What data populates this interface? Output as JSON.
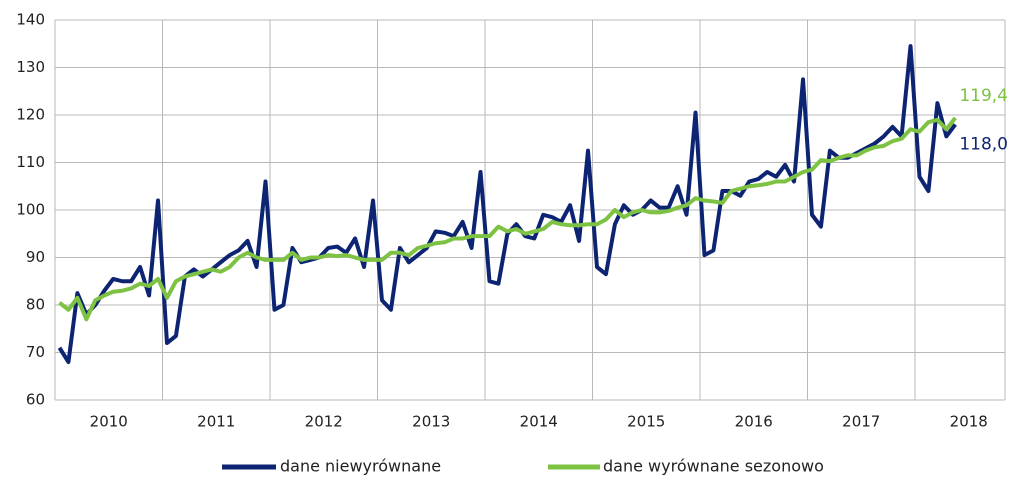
{
  "chart_data": {
    "type": "line",
    "categories": [
      "2010",
      null,
      null,
      null,
      null,
      null,
      null,
      null,
      null,
      null,
      null,
      null,
      "2011",
      null,
      null,
      null,
      null,
      null,
      null,
      null,
      null,
      null,
      null,
      null,
      "2012",
      null,
      null,
      null,
      null,
      null,
      null,
      null,
      null,
      null,
      null,
      null,
      "2013",
      null,
      null,
      null,
      null,
      null,
      null,
      null,
      null,
      null,
      null,
      null,
      "2014",
      null,
      null,
      null,
      null,
      null,
      null,
      null,
      null,
      null,
      null,
      null,
      "2015",
      null,
      null,
      null,
      null,
      null,
      null,
      null,
      null,
      null,
      null,
      null,
      "2016",
      null,
      null,
      null,
      null,
      null,
      null,
      null,
      null,
      null,
      null,
      null,
      "2017",
      null,
      null,
      null,
      null,
      null,
      null,
      null,
      null,
      null,
      null,
      null,
      "2018",
      null,
      null,
      null,
      null
    ],
    "series": [
      {
        "name": "dane niewyrównane",
        "color": "#0d2473",
        "values": [
          71,
          68,
          82.5,
          78,
          80,
          83,
          85.5,
          85,
          85,
          88,
          82,
          102,
          72,
          73.5,
          86,
          87.5,
          86,
          87.5,
          89,
          90.5,
          91.5,
          93.5,
          88,
          106,
          79,
          80,
          92,
          89,
          89.5,
          90,
          92,
          92.3,
          91,
          94,
          88,
          102,
          81,
          79,
          92,
          89,
          90.5,
          92,
          95.5,
          95.2,
          94.5,
          97.5,
          92,
          108,
          85,
          84.5,
          95,
          97,
          94.5,
          94,
          99,
          98.5,
          97.5,
          101,
          93.5,
          112.5,
          88,
          86.5,
          97,
          101,
          99,
          100,
          102,
          100.5,
          100.5,
          105,
          99,
          120.5,
          90.5,
          91.5,
          104,
          104,
          103,
          106,
          106.5,
          108,
          107,
          109.5,
          106,
          127.5,
          99,
          96.5,
          112.5,
          111,
          111,
          112,
          113,
          114,
          115.5,
          117.5,
          115.5,
          134.5,
          107,
          104,
          122.5,
          115.5,
          118.0
        ],
        "value_labels": [
          null,
          null,
          null,
          null,
          null,
          null,
          null,
          null,
          null,
          null,
          null,
          null,
          null,
          null,
          null,
          null,
          null,
          null,
          null,
          null,
          null,
          null,
          null,
          null,
          null,
          null,
          null,
          null,
          null,
          null,
          null,
          null,
          null,
          null,
          null,
          null,
          null,
          null,
          null,
          null,
          null,
          null,
          null,
          null,
          null,
          null,
          null,
          null,
          null,
          null,
          null,
          null,
          null,
          null,
          null,
          null,
          null,
          null,
          null,
          null,
          null,
          null,
          null,
          null,
          null,
          null,
          null,
          null,
          null,
          null,
          null,
          null,
          null,
          null,
          null,
          null,
          null,
          null,
          null,
          null,
          null,
          null,
          null,
          null,
          null,
          null,
          null,
          null,
          null,
          null,
          null,
          null,
          null,
          null,
          null,
          null,
          null,
          null,
          null,
          null,
          "118,0"
        ]
      },
      {
        "name": "dane wyrównane sezonowo",
        "color": "#7dc242",
        "values": [
          80.5,
          79,
          81.5,
          77,
          81,
          82,
          82.8,
          83,
          83.5,
          84.5,
          84,
          85.5,
          81.5,
          85,
          86,
          86.5,
          87,
          87.5,
          87,
          88,
          90,
          91,
          90,
          89.5,
          89.5,
          89.5,
          91,
          89.5,
          90,
          90,
          90.5,
          90.3,
          90.5,
          90,
          89.5,
          89.5,
          89.5,
          91,
          91,
          90.5,
          92,
          92.5,
          93,
          93.2,
          94,
          94,
          94.5,
          94.5,
          94.5,
          96.5,
          95.5,
          96,
          95,
          95.5,
          96,
          97.5,
          97,
          96.8,
          96.8,
          97,
          97,
          98,
          100,
          98.5,
          99.5,
          100,
          99.5,
          99.5,
          99.8,
          100.5,
          101,
          102.5,
          102,
          101.8,
          101.5,
          104,
          104.5,
          105,
          105.2,
          105.5,
          106,
          106,
          107,
          108,
          108.5,
          110.5,
          110.3,
          111,
          111.5,
          111.5,
          112.5,
          113.2,
          113.5,
          114.5,
          115,
          117,
          116.5,
          118.5,
          119,
          117,
          119.4
        ],
        "value_labels": [
          null,
          null,
          null,
          null,
          null,
          null,
          null,
          null,
          null,
          null,
          null,
          null,
          null,
          null,
          null,
          null,
          null,
          null,
          null,
          null,
          null,
          null,
          null,
          null,
          null,
          null,
          null,
          null,
          null,
          null,
          null,
          null,
          null,
          null,
          null,
          null,
          null,
          null,
          null,
          null,
          null,
          null,
          null,
          null,
          null,
          null,
          null,
          null,
          null,
          null,
          null,
          null,
          null,
          null,
          null,
          null,
          null,
          null,
          null,
          null,
          null,
          null,
          null,
          null,
          null,
          null,
          null,
          null,
          null,
          null,
          null,
          null,
          null,
          null,
          null,
          null,
          null,
          null,
          null,
          null,
          null,
          null,
          null,
          null,
          null,
          null,
          null,
          null,
          null,
          null,
          null,
          null,
          null,
          null,
          null,
          null,
          null,
          null,
          null,
          null,
          "119,4"
        ]
      }
    ],
    "ylim": [
      60,
      140
    ],
    "yticks": [
      60,
      70,
      80,
      90,
      100,
      110,
      120,
      130,
      140
    ],
    "grid": true,
    "legend": "bottom"
  }
}
